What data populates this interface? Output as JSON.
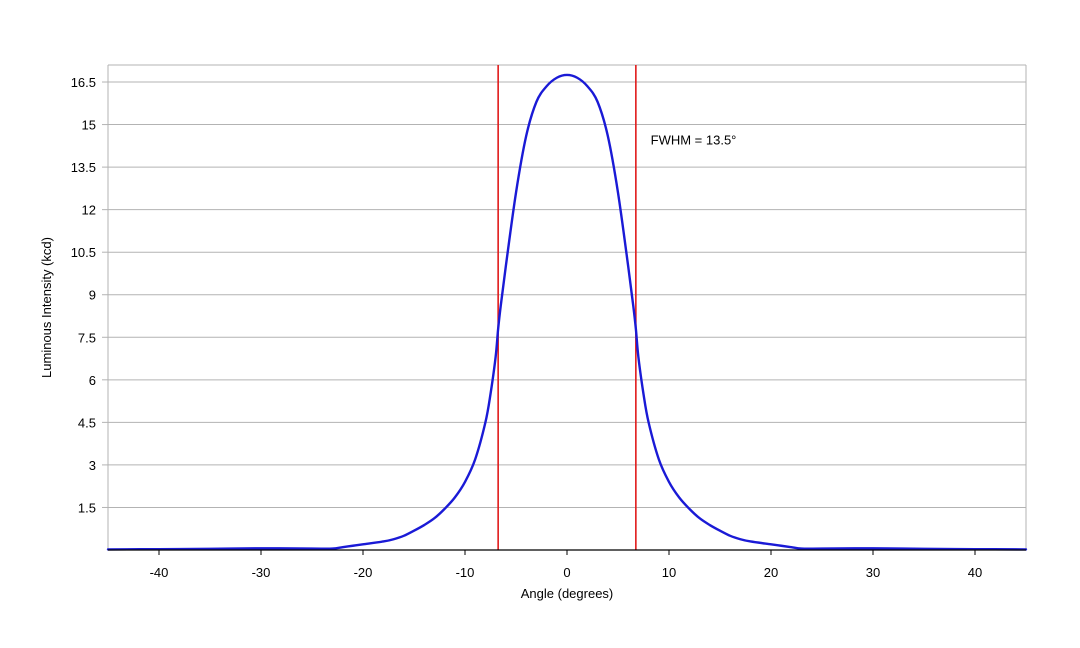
{
  "chart_data": {
    "type": "line",
    "title": "",
    "xlabel": "Angle (degrees)",
    "ylabel": "Luminous Intensity (kcd)",
    "xlim": [
      -45,
      45
    ],
    "ylim": [
      0,
      17.1
    ],
    "x_ticks": [
      -40,
      -30,
      -20,
      -10,
      0,
      10,
      20,
      30,
      40
    ],
    "x_tick_labels": [
      "-40",
      "-30",
      "-20",
      "-10",
      "0",
      "10",
      "20",
      "30",
      "40"
    ],
    "y_ticks": [
      1.5,
      3,
      4.5,
      6,
      7.5,
      9,
      10.5,
      12,
      13.5,
      15,
      16.5
    ],
    "y_tick_labels": [
      "1.5",
      "3",
      "4.5",
      "6",
      "7.5",
      "9",
      "10.5",
      "12",
      "13.5",
      "15",
      "16.5"
    ],
    "grid": "horizontal",
    "legend": "none",
    "series": [
      {
        "color": "#1a1ad6",
        "points": [
          [
            -45,
            0.02
          ],
          [
            -40,
            0.03
          ],
          [
            -35,
            0.04
          ],
          [
            -30,
            0.06
          ],
          [
            -25,
            0.05
          ],
          [
            -23,
            0.05
          ],
          [
            -22,
            0.1
          ],
          [
            -21,
            0.15
          ],
          [
            -20,
            0.2
          ],
          [
            -18,
            0.3
          ],
          [
            -17,
            0.38
          ],
          [
            -16,
            0.5
          ],
          [
            -15,
            0.68
          ],
          [
            -14,
            0.88
          ],
          [
            -13,
            1.12
          ],
          [
            -12,
            1.45
          ],
          [
            -11,
            1.85
          ],
          [
            -10,
            2.4
          ],
          [
            -9,
            3.2
          ],
          [
            -8,
            4.5
          ],
          [
            -7.5,
            5.5
          ],
          [
            -7,
            6.8
          ],
          [
            -6.75,
            7.8
          ],
          [
            -6.5,
            8.6
          ],
          [
            -6,
            10.0
          ],
          [
            -5,
            12.6
          ],
          [
            -4,
            14.6
          ],
          [
            -3,
            15.8
          ],
          [
            -2,
            16.35
          ],
          [
            -1,
            16.65
          ],
          [
            0,
            16.75
          ],
          [
            1,
            16.65
          ],
          [
            2,
            16.35
          ],
          [
            3,
            15.8
          ],
          [
            4,
            14.6
          ],
          [
            5,
            12.6
          ],
          [
            6,
            10.0
          ],
          [
            6.5,
            8.6
          ],
          [
            6.75,
            7.8
          ],
          [
            7,
            6.8
          ],
          [
            7.5,
            5.5
          ],
          [
            8,
            4.5
          ],
          [
            9,
            3.2
          ],
          [
            10,
            2.4
          ],
          [
            11,
            1.85
          ],
          [
            12,
            1.45
          ],
          [
            13,
            1.12
          ],
          [
            14,
            0.88
          ],
          [
            15,
            0.68
          ],
          [
            16,
            0.5
          ],
          [
            17,
            0.38
          ],
          [
            18,
            0.3
          ],
          [
            20,
            0.2
          ],
          [
            21,
            0.15
          ],
          [
            22,
            0.1
          ],
          [
            23,
            0.05
          ],
          [
            25,
            0.05
          ],
          [
            30,
            0.06
          ],
          [
            35,
            0.04
          ],
          [
            40,
            0.03
          ],
          [
            45,
            0.02
          ]
        ]
      }
    ],
    "vertical_lines": [
      {
        "x": -6.75,
        "color": "#e01b1b"
      },
      {
        "x": 6.75,
        "color": "#e01b1b"
      }
    ],
    "annotations": [
      {
        "text": "FWHM = 13.5°",
        "x": 8.2,
        "y": 14.3
      }
    ],
    "colors": {
      "grid": "#b3b3b3",
      "frame": "#b3b3b3",
      "axis": "#000000"
    }
  }
}
